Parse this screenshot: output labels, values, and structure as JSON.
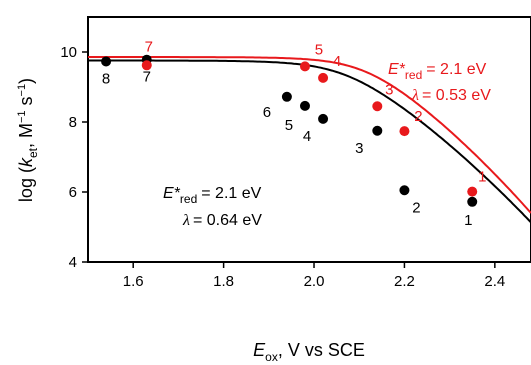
{
  "chart_data": {
    "type": "scatter",
    "xlabel": "E_ox, V vs SCE",
    "ylabel": "log (k_et, M^-1 s^-1)",
    "xlim": [
      1.5,
      2.48
    ],
    "ylim": [
      4.0,
      11.0
    ],
    "xticks": [
      "1.6",
      "1.8",
      "2.0",
      "2.2",
      "2.4"
    ],
    "yticks": [
      "4",
      "6",
      "8",
      "10"
    ],
    "grid": false,
    "legend": "none",
    "series": [
      {
        "color": "#000000",
        "points": [
          {
            "x": 1.54,
            "y": 9.73,
            "label": "8"
          },
          {
            "x": 1.63,
            "y": 9.78,
            "label": "7"
          },
          {
            "x": 1.94,
            "y": 8.72,
            "label": "6"
          },
          {
            "x": 1.98,
            "y": 8.46,
            "label": "5"
          },
          {
            "x": 2.02,
            "y": 8.09,
            "label": "4"
          },
          {
            "x": 2.14,
            "y": 7.75,
            "label": "3"
          },
          {
            "x": 2.2,
            "y": 6.05,
            "label": "2"
          },
          {
            "x": 2.35,
            "y": 5.72,
            "label": "1"
          }
        ],
        "fit_curve": {
          "E_red": 2.1,
          "lambda": 0.64,
          "max": 9.76
        },
        "annotation": {
          "quantity": "E*",
          "subscript": "red",
          "value": "= 2.1 eV",
          "lambda_text": "= 0.64 eV"
        }
      },
      {
        "color": "#e8191c",
        "points": [
          {
            "x": 1.63,
            "y": 9.62,
            "label": "7"
          },
          {
            "x": 1.98,
            "y": 9.59,
            "label": "5"
          },
          {
            "x": 2.02,
            "y": 9.26,
            "label": "4"
          },
          {
            "x": 2.14,
            "y": 8.45,
            "label": "3"
          },
          {
            "x": 2.2,
            "y": 7.74,
            "label": "2"
          },
          {
            "x": 2.35,
            "y": 6.01,
            "label": "1"
          }
        ],
        "fit_curve": {
          "E_red": 2.1,
          "lambda": 0.53,
          "max": 9.86
        },
        "annotation": {
          "quantity": "E*",
          "subscript": "red",
          "value": "= 2.1 eV",
          "lambda_text": "= 0.53 eV"
        }
      }
    ]
  },
  "labels": {
    "lambda_symbol": "λ",
    "ylabel_pre": "log (",
    "ylabel_k": "k",
    "ylabel_sub": "et",
    "ylabel_units": ", M",
    "ylabel_sup1": "−1",
    "ylabel_s": " s",
    "ylabel_sup2": "−1",
    "ylabel_post": ")",
    "xlabel_e": "E",
    "xlabel_sub": "ox",
    "xlabel_post": ", V vs SCE"
  }
}
